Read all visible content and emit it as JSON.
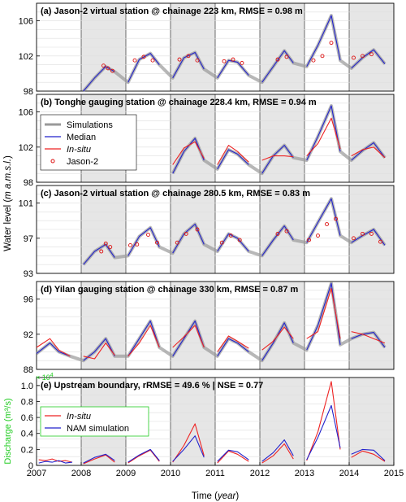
{
  "figure": {
    "ylabel_left": "Water level (",
    "ylabel_italic": "m a.m.s.l.",
    "ylabel_right": ")",
    "xlabel_left": "Time (",
    "xlabel_italic": "year",
    "xlabel_right": ")",
    "q_ylabel": "Discharge (m³/s)",
    "q_multiplier": "× 10",
    "q_multiplier_exp": "4"
  },
  "chart_data": [
    {
      "type": "line",
      "title": "(a) Jason-2 virtual station @ chainage 223 km,  RMSE = 0.98 m",
      "xlim": [
        2007,
        2015
      ],
      "ylim": [
        98,
        108
      ],
      "yticks": [
        98,
        102,
        106
      ],
      "series": [
        {
          "name": "Median",
          "x": [
            2008.05,
            2008.3,
            2008.55,
            2008.75,
            2009.05,
            2009.3,
            2009.55,
            2009.75,
            2010.05,
            2010.3,
            2010.55,
            2010.75,
            2011.05,
            2011.3,
            2011.5,
            2011.75,
            2012.05,
            2012.3,
            2012.55,
            2012.75,
            2013.05,
            2013.3,
            2013.6,
            2013.8,
            2014.05,
            2014.3,
            2014.55,
            2014.8
          ],
          "y": [
            98,
            99.5,
            100.8,
            100.2,
            99,
            101.6,
            102.3,
            101,
            99.5,
            101.8,
            102.4,
            100.5,
            99.5,
            101.5,
            101.3,
            99.8,
            99,
            100.8,
            102.6,
            101.2,
            100.8,
            103.2,
            106.6,
            101.5,
            100.6,
            101.8,
            102.7,
            101.1
          ]
        },
        {
          "name": "Jason-2",
          "x": [
            2008.5,
            2008.6,
            2008.7,
            2009.2,
            2009.4,
            2009.6,
            2010.2,
            2010.4,
            2010.6,
            2011.2,
            2011.4,
            2011.6,
            2012.4,
            2012.6,
            2013.2,
            2013.4,
            2013.6,
            2014.1,
            2014.3,
            2014.5
          ],
          "y": [
            100.9,
            100.6,
            100.3,
            101.5,
            101.9,
            101.5,
            101.6,
            102,
            101.5,
            101.4,
            101.6,
            101.2,
            101.6,
            101.9,
            101.5,
            102,
            103.5,
            101.8,
            102,
            102.2
          ]
        }
      ]
    },
    {
      "type": "line",
      "title": "(b) Tonghe gauging station @ chainage 228.4 km,  RMSE = 0.94 m",
      "xlim": [
        2007,
        2015
      ],
      "ylim": [
        98,
        108
      ],
      "yticks": [
        98,
        102,
        106
      ],
      "legend": [
        "Simulations",
        "Median",
        "In-situ",
        "Jason-2"
      ],
      "series": [
        {
          "name": "Median",
          "x": [
            2010.05,
            2010.3,
            2010.55,
            2010.75,
            2011.05,
            2011.3,
            2011.5,
            2011.75,
            2012.05,
            2012.3,
            2012.55,
            2012.75,
            2013.05,
            2013.3,
            2013.6,
            2013.8,
            2014.05,
            2014.3,
            2014.55,
            2014.8
          ],
          "y": [
            99,
            101.5,
            103,
            100.5,
            99.5,
            101.7,
            101.2,
            100,
            99,
            101,
            102.2,
            100.8,
            100.5,
            103.2,
            106.7,
            101.5,
            100.5,
            101.6,
            102.5,
            100.8
          ]
        },
        {
          "name": "In-situ",
          "x": [
            2010.05,
            2010.3,
            2010.55,
            2010.75,
            2011.05,
            2011.3,
            2011.5,
            2011.75,
            2012.05,
            2012.3,
            2012.55,
            2012.75,
            2013.05,
            2013.3,
            2013.6,
            2013.8,
            2014.05,
            2014.3,
            2014.55,
            2014.8
          ],
          "y": [
            100,
            101.9,
            102.6,
            100.7,
            100,
            102.2,
            101.5,
            100.3,
            100.5,
            101,
            101,
            100.9,
            101,
            102.4,
            105.3,
            101.8,
            101,
            101.7,
            102,
            100.8
          ]
        }
      ]
    },
    {
      "type": "line",
      "title": "(c) Jason-2 virtual station @ chainage 280.5 km, RMSE = 0.83 m",
      "xlim": [
        2007,
        2015
      ],
      "ylim": [
        93,
        103
      ],
      "yticks": [
        93,
        97,
        101
      ],
      "series": [
        {
          "name": "Median",
          "x": [
            2008.05,
            2008.3,
            2008.55,
            2008.75,
            2009.05,
            2009.3,
            2009.55,
            2009.75,
            2010.05,
            2010.3,
            2010.55,
            2010.75,
            2011.05,
            2011.3,
            2011.5,
            2011.75,
            2012.05,
            2012.3,
            2012.55,
            2012.75,
            2013.05,
            2013.3,
            2013.6,
            2013.8,
            2014.05,
            2014.3,
            2014.55,
            2014.8
          ],
          "y": [
            94,
            95.5,
            96.3,
            94.8,
            95,
            97.2,
            98.2,
            96,
            95.3,
            97.5,
            98.6,
            96.3,
            95.5,
            97.5,
            97,
            95.5,
            95,
            96.8,
            98.4,
            96.8,
            96.5,
            98.8,
            101.5,
            97.3,
            96.5,
            97.3,
            98,
            96.2
          ]
        },
        {
          "name": "Jason-2",
          "x": [
            2008.45,
            2008.55,
            2008.65,
            2009.1,
            2009.25,
            2009.5,
            2009.7,
            2010.15,
            2010.35,
            2010.6,
            2011.15,
            2011.35,
            2011.55,
            2012.4,
            2012.6,
            2013.1,
            2013.3,
            2013.5,
            2013.7,
            2014.1,
            2014.3,
            2014.5,
            2014.7
          ],
          "y": [
            95.5,
            96.4,
            96,
            96.2,
            96.3,
            97.4,
            96.5,
            96.5,
            97.5,
            98,
            96.5,
            97.3,
            96.8,
            97.5,
            97.8,
            96.8,
            97.3,
            98.6,
            99.2,
            97,
            97.5,
            97.5,
            96.6
          ]
        }
      ]
    },
    {
      "type": "line",
      "title": "(d) Yilan gauging station @ chainage 330 km,  RMSE = 0.87 m",
      "xlim": [
        2007,
        2015
      ],
      "ylim": [
        88,
        98
      ],
      "yticks": [
        88,
        92,
        96
      ],
      "series": [
        {
          "name": "Median",
          "x": [
            2007.0,
            2007.3,
            2007.5,
            2007.75,
            2008.05,
            2008.3,
            2008.55,
            2008.75,
            2009.05,
            2009.3,
            2009.55,
            2009.75,
            2010.05,
            2010.3,
            2010.55,
            2010.75,
            2011.05,
            2011.3,
            2011.5,
            2011.75,
            2012.05,
            2012.3,
            2012.55,
            2012.75,
            2013.05,
            2013.3,
            2013.6,
            2013.8,
            2014.05,
            2014.3,
            2014.55,
            2014.8
          ],
          "y": [
            89.8,
            91,
            90,
            89.5,
            89,
            90,
            91.5,
            89.5,
            89.5,
            91.5,
            93.5,
            90.5,
            89.5,
            91.5,
            93.5,
            90.5,
            89.5,
            91.5,
            91,
            90,
            89,
            91,
            93.3,
            91,
            90.2,
            93,
            97.8,
            90.8,
            91.5,
            92,
            92.2,
            90.5
          ]
        },
        {
          "name": "In-situ",
          "x": [
            2007.0,
            2007.3,
            2007.5,
            2007.75,
            2008.05,
            2008.3,
            2008.55,
            2008.75,
            2009.05,
            2009.3,
            2009.55,
            2009.75,
            2010.05,
            2010.3,
            2010.55,
            2010.75,
            2011.05,
            2011.3,
            2011.5,
            2011.75,
            2012.05,
            2012.3,
            2012.55,
            2012.75,
            2013.05,
            2013.3,
            2013.6,
            2013.8,
            2014.05,
            2014.3,
            2014.55,
            2014.8
          ],
          "y": [
            90.5,
            91.5,
            90.2,
            89.5,
            89.5,
            89.2,
            91,
            89.6,
            89.5,
            91,
            93,
            90.5,
            90.5,
            91.7,
            93,
            90.5,
            90,
            91.8,
            91.2,
            90.4,
            90.2,
            91.2,
            92.8,
            91.5,
            91.5,
            92.3,
            97.2,
            91.5,
            92.3,
            92,
            91.5,
            91
          ]
        }
      ]
    },
    {
      "type": "line",
      "title": "(e) Upstream boundary, rRMSE = 49.6 % | NSE = 0.77",
      "xlim": [
        2007,
        2015
      ],
      "ylim": [
        0,
        1.1
      ],
      "yticks": [
        0,
        0.2,
        0.4,
        0.6,
        0.8,
        1.0
      ],
      "ytick_labels": [
        "0",
        "0.2",
        "0.4",
        "0.6",
        "0.8",
        "1.0"
      ],
      "xticks": [
        2007,
        2008,
        2009,
        2010,
        2011,
        2012,
        2013,
        2014,
        2015
      ],
      "legend": [
        "In-situ",
        "NAM simulation"
      ],
      "series": [
        {
          "name": "In-situ",
          "x": [
            2007.05,
            2007.2,
            2007.35,
            2007.5,
            2007.65,
            2007.8,
            2008.05,
            2008.3,
            2008.55,
            2008.75,
            2009.05,
            2009.3,
            2009.55,
            2009.75,
            2010.05,
            2010.3,
            2010.55,
            2010.75,
            2011.05,
            2011.3,
            2011.5,
            2011.75,
            2012.05,
            2012.3,
            2012.55,
            2012.75,
            2013.05,
            2013.3,
            2013.6,
            2013.8,
            2014.05,
            2014.3,
            2014.55,
            2014.8
          ],
          "y": [
            0.07,
            0.06,
            0.08,
            0.05,
            0.06,
            0.04,
            0.02,
            0.08,
            0.13,
            0.04,
            0.03,
            0.12,
            0.19,
            0.05,
            0.04,
            0.25,
            0.52,
            0.12,
            0.03,
            0.18,
            0.14,
            0.05,
            0.03,
            0.12,
            0.27,
            0.08,
            0.06,
            0.42,
            1.05,
            0.2,
            0.1,
            0.18,
            0.14,
            0.05
          ]
        },
        {
          "name": "NAM simulation",
          "x": [
            2007.05,
            2007.2,
            2007.35,
            2007.5,
            2007.65,
            2007.8,
            2008.05,
            2008.3,
            2008.55,
            2008.75,
            2009.05,
            2009.3,
            2009.55,
            2009.75,
            2010.05,
            2010.3,
            2010.55,
            2010.75,
            2011.05,
            2011.3,
            2011.5,
            2011.75,
            2012.05,
            2012.3,
            2012.55,
            2012.75,
            2013.05,
            2013.3,
            2013.6,
            2013.8,
            2014.05,
            2014.3,
            2014.55,
            2014.8
          ],
          "y": [
            0.03,
            0.05,
            0.04,
            0.06,
            0.03,
            0.04,
            0.03,
            0.1,
            0.14,
            0.06,
            0.04,
            0.13,
            0.2,
            0.06,
            0.05,
            0.2,
            0.37,
            0.1,
            0.05,
            0.19,
            0.17,
            0.07,
            0.05,
            0.16,
            0.32,
            0.12,
            0.07,
            0.35,
            0.75,
            0.22,
            0.14,
            0.2,
            0.19,
            0.06
          ]
        }
      ]
    }
  ],
  "colors": {
    "median": "#2222cc",
    "insitu": "#ee2222",
    "simulations": "#999999",
    "jason": "#dd1111",
    "shade": "#e6e6e6",
    "grid": "#dedede",
    "discharge_axis": "#22cc22"
  }
}
